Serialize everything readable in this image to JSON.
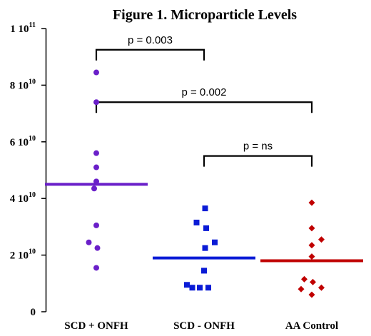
{
  "chart_data": {
    "type": "scatter",
    "title": "Figure 1.  Microparticle Levels",
    "xlabel": "",
    "ylabel": "",
    "ylim": [
      0,
      100000000000.0
    ],
    "yticks": [
      {
        "value": 0,
        "base": "0",
        "exp": ""
      },
      {
        "value": 20000000000.0,
        "base": "2 10",
        "exp": "10"
      },
      {
        "value": 40000000000.0,
        "base": "4 10",
        "exp": "10"
      },
      {
        "value": 60000000000.0,
        "base": "6 10",
        "exp": "10"
      },
      {
        "value": 80000000000.0,
        "base": "8 10",
        "exp": "10"
      },
      {
        "value": 100000000000.0,
        "base": "1 10",
        "exp": "11"
      }
    ],
    "categories": [
      "SCD + ONFH",
      "SCD - ONFH",
      "AA Control"
    ],
    "series": [
      {
        "name": "SCD + ONFH",
        "color": "#6a1fc9",
        "marker": "circle",
        "median": 45000000000.0,
        "points": [
          [
            0,
            84500000000.0
          ],
          [
            0,
            74000000000.0
          ],
          [
            0,
            56000000000.0
          ],
          [
            0,
            51000000000.0
          ],
          [
            0,
            46000000000.0
          ],
          [
            -0.02,
            43500000000.0
          ],
          [
            0,
            30500000000.0
          ],
          [
            -0.07,
            24500000000.0
          ],
          [
            0.01,
            22500000000.0
          ],
          [
            0,
            15500000000.0
          ]
        ]
      },
      {
        "name": "SCD - ONFH",
        "color": "#0a1bd6",
        "marker": "square",
        "median": 19000000000.0,
        "points": [
          [
            0.01,
            36500000000.0
          ],
          [
            -0.07,
            31500000000.0
          ],
          [
            0.02,
            29500000000.0
          ],
          [
            0.1,
            24500000000.0
          ],
          [
            0.01,
            22500000000.0
          ],
          [
            0,
            14500000000.0
          ],
          [
            -0.16,
            9500000000.0
          ],
          [
            -0.11,
            8500000000.0
          ],
          [
            -0.04,
            8500000000.0
          ],
          [
            0.04,
            8500000000.0
          ]
        ]
      },
      {
        "name": "AA Control",
        "color": "#c00000",
        "marker": "diamond",
        "median": 18000000000.0,
        "points": [
          [
            0,
            38500000000.0
          ],
          [
            0,
            29500000000.0
          ],
          [
            0.09,
            25500000000.0
          ],
          [
            0,
            23500000000.0
          ],
          [
            0,
            19500000000.0
          ],
          [
            -0.07,
            11500000000.0
          ],
          [
            0.01,
            10500000000.0
          ],
          [
            -0.1,
            8000000000.0
          ],
          [
            0.09,
            8500000000.0
          ],
          [
            0,
            6000000000.0
          ]
        ]
      }
    ],
    "annotations": [
      {
        "text": "p = 0.003",
        "from": 0,
        "to": 1,
        "y": 92500000000.0
      },
      {
        "text": "p = 0.002",
        "from": 0,
        "to": 2,
        "y": 74000000000.0
      },
      {
        "text": "p = ns",
        "from": 1,
        "to": 2,
        "y": 55000000000.0
      }
    ],
    "grid": false,
    "legend": "none"
  }
}
